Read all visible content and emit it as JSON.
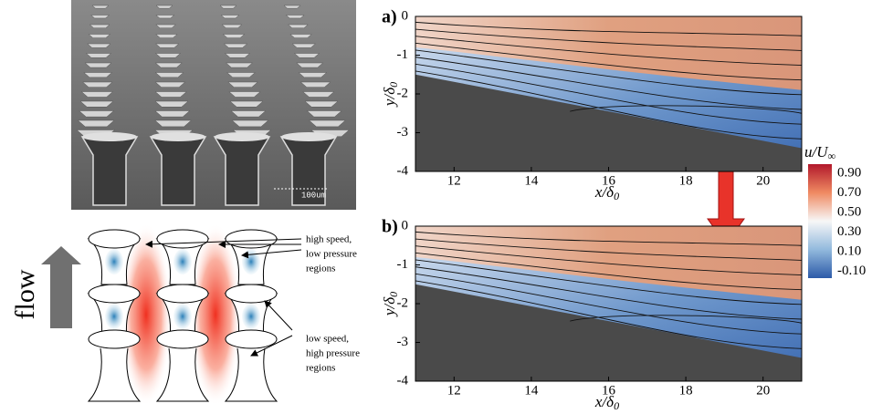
{
  "sem_image": {
    "scale_label": "100um"
  },
  "schematic": {
    "flow_label": "flow",
    "high_speed_label": [
      "high speed,",
      "low pressure",
      "regions"
    ],
    "low_speed_label": [
      "low speed,",
      "high pressure",
      "regions"
    ]
  },
  "panels": [
    {
      "label": "a)",
      "x_label": {
        "main": "x/δ",
        "sub": "0"
      },
      "y_label": {
        "main": "y/δ",
        "sub": "0"
      },
      "x_ticks": [
        12,
        14,
        16,
        18,
        20
      ],
      "y_ticks": [
        0,
        -1,
        -2,
        -3,
        -4
      ]
    },
    {
      "label": "b)",
      "x_label": {
        "main": "x/δ",
        "sub": "0"
      },
      "y_label": {
        "main": "y/δ",
        "sub": "0"
      },
      "x_ticks": [
        12,
        14,
        16,
        18,
        20
      ],
      "y_ticks": [
        0,
        -1,
        -2,
        -3,
        -4
      ]
    }
  ],
  "colorbar": {
    "title": {
      "main": "u/U",
      "sub": "∞"
    },
    "labels": [
      "0.90",
      "0.70",
      "0.50",
      "0.30",
      "0.10",
      "-0.10"
    ]
  }
}
